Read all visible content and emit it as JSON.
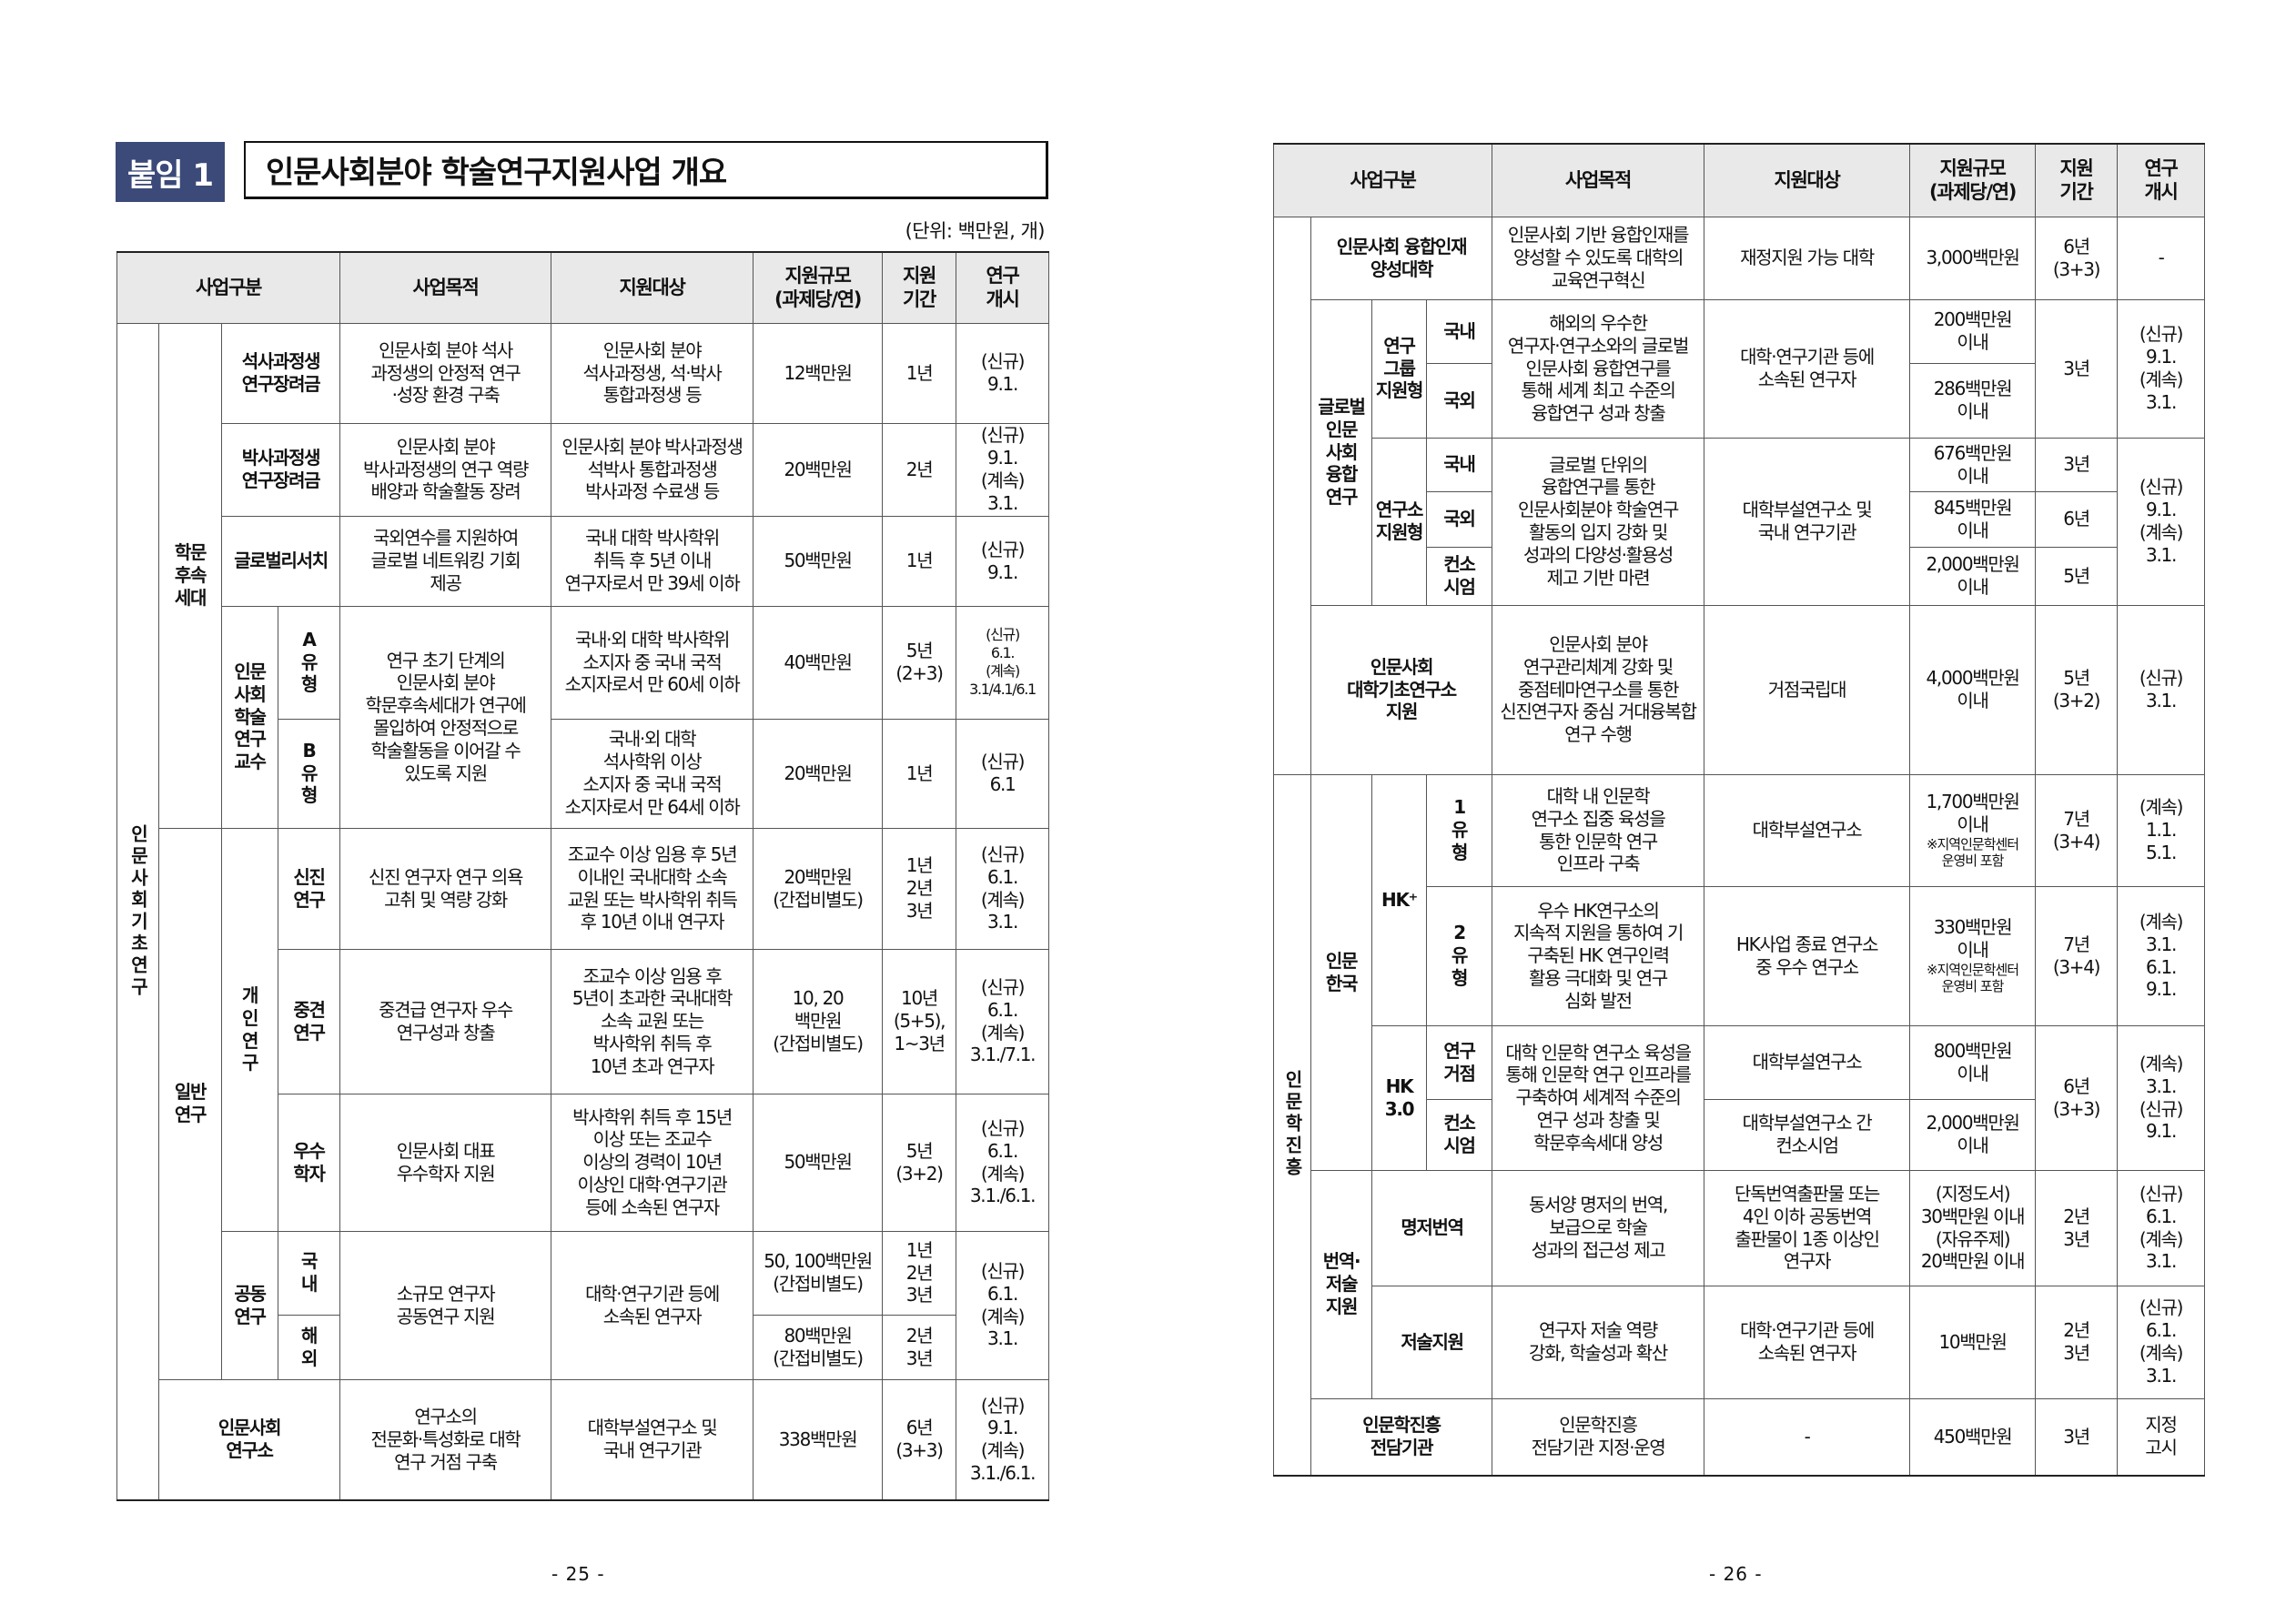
{
  "left": {
    "badge": "붙임 1",
    "title": "인문사회분야 학술연구지원사업 개요",
    "unit": "(단위: 백만원, 개)",
    "page": "- 25 -",
    "header": {
      "category": "사업구분",
      "purpose": "사업목적",
      "target": "지원대상",
      "scale": "지원규모\n(과제당/연)",
      "period": "지원\n기간",
      "start": "연구\n개시"
    },
    "groups": {
      "basic": "인문사회기초연구",
      "successor": "학문\n후속\n세대",
      "general": "일반\n연구",
      "fellow": "인문\n사회\n학술\n연구\n교수",
      "individual": "개\n인\n연\n구",
      "joint": "공동\n연구"
    },
    "rows": [
      {
        "name": "석사과정생\n연구장려금",
        "purpose": "인문사회 분야 석사\n과정생의 안정적 연구\n·성장 환경 구축",
        "target": "인문사회 분야\n석사과정생, 석·박사\n통합과정생 등",
        "scale": "12백만원",
        "period": "1년",
        "start": "(신규)\n9.1."
      },
      {
        "name": "박사과정생\n연구장려금",
        "purpose": "인문사회 분야\n박사과정생의 연구 역량\n배양과 학술활동 장려",
        "target": "인문사회 분야 박사과정생\n석박사 통합과정생\n박사과정 수료생 등",
        "scale": "20백만원",
        "period": "2년",
        "start": "(신규)\n9.1.\n(계속)\n3.1."
      },
      {
        "name": "글로벌리서치",
        "purpose": "국외연수를 지원하여\n글로벌 네트워킹 기회\n제공",
        "target": "국내 대학 박사학위\n취득 후 5년 이내\n연구자로서 만 39세 이하",
        "scale": "50백만원",
        "period": "1년",
        "start": "(신규)\n9.1."
      },
      {
        "name": "A\n유\n형",
        "purpose": "연구 초기 단계의\n인문사회 분야\n학문후속세대가 연구에\n몰입하여 안정적으로\n학술활동을 이어갈 수\n있도록 지원",
        "target": "국내·외 대학 박사학위\n소지자 중 국내 국적\n소지자로서 만 60세 이하",
        "scale": "40백만원",
        "period": "5년\n(2+3)",
        "start": "(신규)\n6.1.\n(계속)\n3.1/4.1/6.1"
      },
      {
        "name": "B\n유\n형",
        "target": "국내·외 대학\n석사학위 이상\n소지자 중 국내 국적\n소지자로서 만 64세 이하",
        "scale": "20백만원",
        "period": "1년",
        "start": "(신규)\n6.1"
      },
      {
        "name": "신진\n연구",
        "purpose": "신진 연구자 연구 의욕\n고취 및 역량 강화",
        "target": "조교수 이상 임용 후 5년\n이내인 국내대학 소속\n교원 또는 박사학위 취득\n후 10년 이내 연구자",
        "scale": "20백만원\n(간접비별도)",
        "period": "1년\n2년\n3년",
        "start": "(신규)\n6.1.\n(계속)\n3.1."
      },
      {
        "name": "중견\n연구",
        "purpose": "중견급 연구자 우수\n연구성과 창출",
        "target": "조교수 이상 임용 후\n5년이 초과한 국내대학\n소속 교원 또는\n박사학위 취득 후\n10년 초과 연구자",
        "scale": "10, 20\n백만원\n(간접비별도)",
        "period": "10년\n(5+5),\n1~3년",
        "start": "(신규)\n6.1.\n(계속)\n3.1./7.1."
      },
      {
        "name": "우수\n학자",
        "purpose": "인문사회 대표\n우수학자 지원",
        "target": "박사학위 취득 후 15년\n이상 또는 조교수\n이상의 경력이 10년\n이상인 대학·연구기관\n등에 소속된 연구자",
        "scale": "50백만원",
        "period": "5년\n(3+2)",
        "start": "(신규)\n6.1.\n(계속)\n3.1./6.1."
      },
      {
        "name": "국\n내",
        "purpose": "소규모 연구자\n공동연구 지원",
        "target": "대학·연구기관 등에\n소속된 연구자",
        "scale": "50, 100백만원\n(간접비별도)",
        "period": "1년\n2년\n3년",
        "start": "(신규)\n6.1.\n(계속)\n3.1."
      },
      {
        "name": "해\n외",
        "scale": "80백만원\n(간접비별도)",
        "period": "2년\n3년"
      },
      {
        "name": "인문사회\n연구소",
        "purpose": "연구소의\n전문화·특성화로 대학\n연구 거점 구축",
        "target": "대학부설연구소 및\n국내 연구기관",
        "scale": "338백만원",
        "period": "6년\n(3+3)",
        "start": "(신규)\n9.1.\n(계속)\n3.1./6.1."
      }
    ]
  },
  "right": {
    "page": "- 26 -",
    "header": {
      "category": "사업구분",
      "purpose": "사업목적",
      "target": "지원대상",
      "scale": "지원규모\n(과제당/연)",
      "period": "지원\n기간",
      "start": "연구\n개시"
    },
    "groups": {
      "humanities": "인문학진흥",
      "global": "글로벌\n인문\n사회\n융합\n연구",
      "group_type": "연구\n그룹\n지원형",
      "inst_type": "연구소\n지원형",
      "hk_korea": "인문\n한국",
      "hkplus": "HK⁺",
      "hk30": "HK\n3.0",
      "translation": "번역·\n저술\n지원"
    },
    "rows": [
      {
        "name": "인문사회 융합인재\n양성대학",
        "purpose": "인문사회 기반 융합인재를\n양성할 수 있도록 대학의\n교육연구혁신",
        "target": "재정지원 가능 대학",
        "scale": "3,000백만원",
        "period": "6년\n(3+3)",
        "start": "-"
      },
      {
        "name": "국내",
        "purpose": "해외의 우수한\n연구자·연구소와의 글로벌\n인문사회 융합연구를\n통해 세계 최고 수준의\n융합연구 성과 창출",
        "target": "대학·연구기관 등에\n소속된 연구자",
        "scale": "200백만원\n이내",
        "period": "3년",
        "start": "(신규)\n9.1.\n(계속)\n3.1."
      },
      {
        "name": "국외",
        "scale": "286백만원\n이내"
      },
      {
        "name": "국내",
        "purpose": "글로벌 단위의\n융합연구를 통한\n인문사회분야 학술연구\n활동의 입지 강화 및\n성과의 다양성·활용성\n제고 기반 마련",
        "target": "대학부설연구소 및\n국내 연구기관",
        "scale": "676백만원\n이내",
        "period": "3년",
        "start": "(신규)\n9.1.\n(계속)\n3.1."
      },
      {
        "name": "국외",
        "scale": "845백만원\n이내",
        "period": "6년"
      },
      {
        "name": "컨소\n시엄",
        "scale": "2,000백만원\n이내",
        "period": "5년"
      },
      {
        "name": "인문사회\n대학기초연구소\n지원",
        "purpose": "인문사회 분야\n연구관리체계 강화 및\n중점테마연구소를 통한\n신진연구자 중심 거대융복합\n연구 수행",
        "target": "거점국립대",
        "scale": "4,000백만원\n이내",
        "period": "5년\n(3+2)",
        "start": "(신규)\n3.1."
      },
      {
        "name": "1\n유\n형",
        "purpose": "대학 내 인문학\n연구소 집중 육성을\n통한 인문학 연구\n인프라 구축",
        "target": "대학부설연구소",
        "scale": "1,700백만원\n이내",
        "note": "※지역인문학센터\n운영비 포함",
        "period": "7년\n(3+4)",
        "start": "(계속)\n1.1.\n5.1."
      },
      {
        "name": "2\n유\n형",
        "purpose": "우수 HK연구소의\n지속적 지원을 통하여 기\n구축된 HK 연구인력\n활용 극대화 및 연구\n심화 발전",
        "target": "HK사업 종료 연구소\n중 우수 연구소",
        "scale": "330백만원\n이내",
        "note": "※지역인문학센터\n운영비 포함",
        "period": "7년\n(3+4)",
        "start": "(계속)\n3.1.\n6.1.\n9.1."
      },
      {
        "name": "연구\n거점",
        "purpose": "대학 인문학 연구소 육성을\n통해 인문학 연구 인프라를\n구축하여 세계적 수준의\n연구 성과 창출 및\n학문후속세대 양성",
        "target": "대학부설연구소",
        "scale": "800백만원\n이내",
        "period": "6년\n(3+3)",
        "start": "(계속)\n3.1.\n(신규)\n9.1."
      },
      {
        "name": "컨소\n시엄",
        "target": "대학부설연구소 간\n컨소시엄",
        "scale": "2,000백만원\n이내"
      },
      {
        "name": "명저번역",
        "purpose": "동서양 명저의 번역,\n보급으로 학술\n성과의 접근성 제고",
        "target": "단독번역출판물 또는\n4인 이하 공동번역\n출판물이 1종 이상인\n연구자",
        "scale": "(지정도서)\n30백만원 이내\n(자유주제)\n20백만원 이내",
        "period": "2년\n3년",
        "start": "(신규)\n6.1.\n(계속)\n3.1."
      },
      {
        "name": "저술지원",
        "purpose": "연구자 저술 역량\n강화, 학술성과 확산",
        "target": "대학·연구기관 등에\n소속된 연구자",
        "scale": "10백만원",
        "period": "2년\n3년",
        "start": "(신규)\n6.1.\n(계속)\n3.1."
      },
      {
        "name": "인문학진흥\n전담기관",
        "purpose": "인문학진흥\n전담기관 지정·운영",
        "target": "-",
        "scale": "450백만원",
        "period": "3년",
        "start": "지정\n고시"
      }
    ]
  },
  "colors": {
    "badge": "#3b4a78",
    "header_bg": "#e9e9e9"
  }
}
